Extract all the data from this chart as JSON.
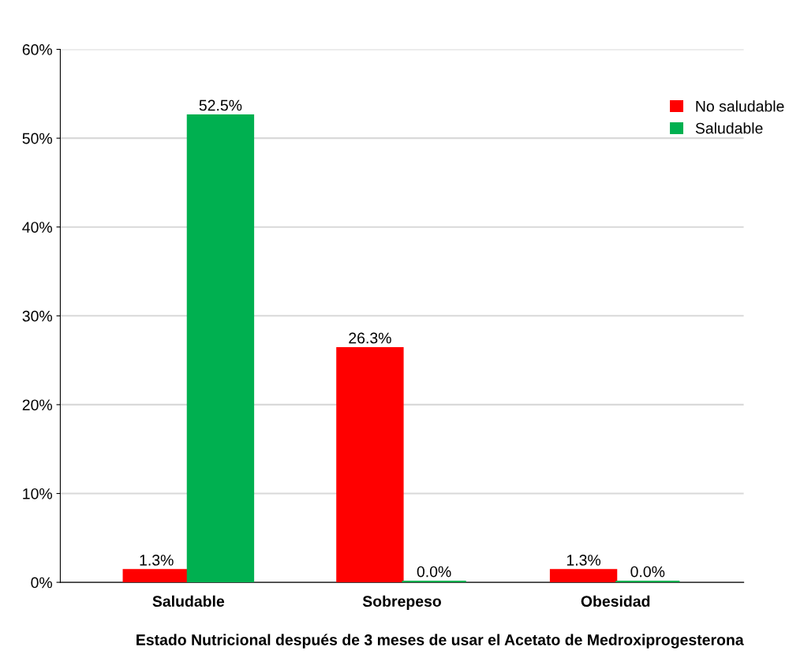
{
  "chart_data": {
    "type": "bar",
    "xlabel": "Estado Nutricional después de 3 meses de usar el Acetato de Medroxiprogesterona",
    "categories": [
      "Saludable",
      "Sobrepeso",
      "Obesidad"
    ],
    "series": [
      {
        "name": "No saludable",
        "color": "#ff0000",
        "values": [
          1.3,
          26.3,
          1.3
        ],
        "value_labels": [
          "1.3%",
          "26.3%",
          "1.3%"
        ]
      },
      {
        "name": "Saludable",
        "color": "#00b050",
        "values": [
          52.5,
          0.0,
          0.0
        ],
        "value_labels": [
          "52.5%",
          "0.0%",
          "0.0%"
        ]
      }
    ],
    "ylim": [
      0,
      60
    ],
    "yticks": [
      {
        "value": 0,
        "label": "0%"
      },
      {
        "value": 10,
        "label": "10%"
      },
      {
        "value": 20,
        "label": "20%"
      },
      {
        "value": 30,
        "label": "30%"
      },
      {
        "value": 40,
        "label": "40%"
      },
      {
        "value": 50,
        "label": "50%"
      },
      {
        "value": 60,
        "label": "60%"
      }
    ],
    "grid": "y",
    "legend": "top right"
  }
}
